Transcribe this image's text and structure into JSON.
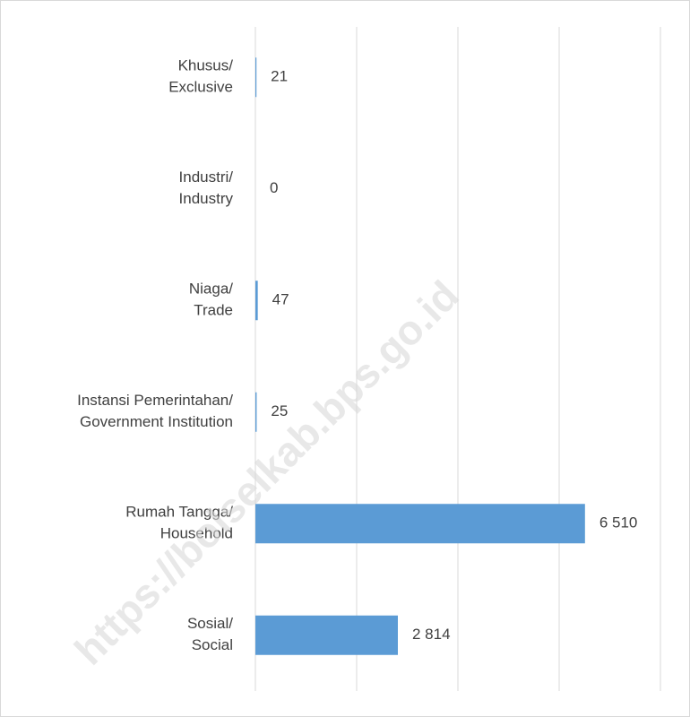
{
  "chart_data": {
    "type": "barh",
    "categories": [
      [
        "Khusus/",
        "Exclusive"
      ],
      [
        "Industri/",
        "Industry"
      ],
      [
        "Niaga/",
        "Trade"
      ],
      [
        "Instansi Pemerintahan/",
        "Government Institution"
      ],
      [
        "Rumah Tangga/",
        "Household"
      ],
      [
        "Sosial/",
        "Social"
      ]
    ],
    "values": [
      21,
      0,
      47,
      25,
      6510,
      2814
    ],
    "value_labels": [
      "21",
      "0",
      "47",
      "25",
      "6 510",
      "2 814"
    ],
    "color": "#5b9bd5",
    "xlim": [
      0,
      8000
    ],
    "xticks": [
      0,
      2000,
      4000,
      6000,
      8000
    ],
    "grid": true
  },
  "watermark": "https://bolselkab.bps.go.id"
}
